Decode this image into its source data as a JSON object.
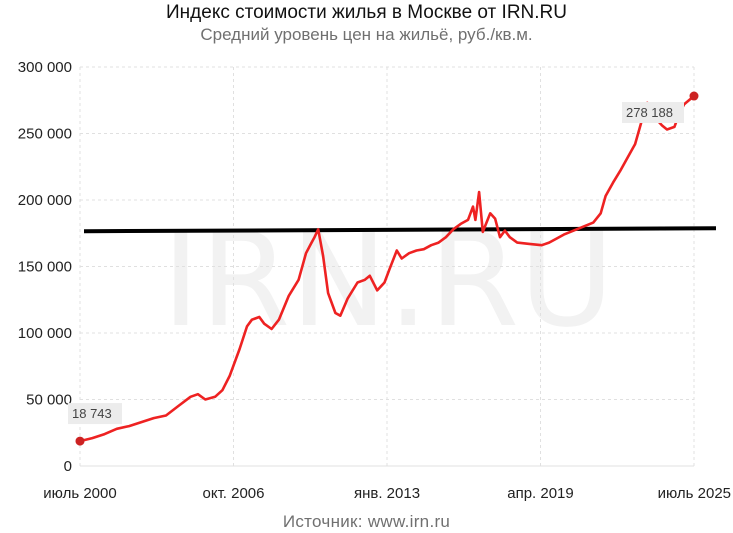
{
  "chart_data": {
    "type": "line",
    "title": "Индекс стоимости жилья в Москве от IRN.RU",
    "subtitle": "Средний уровень цен на жильё, руб./кв.м.",
    "source": "Источник:  www.irn.ru",
    "watermark": "IRN.RU",
    "x_ticks": [
      "июль 2000",
      "окт. 2006",
      "янв. 2013",
      "апр. 2019",
      "июль 2025"
    ],
    "y_ticks": [
      "0",
      "50 000",
      "100 000",
      "150 000",
      "200 000",
      "250 000",
      "300 000"
    ],
    "ylim": [
      0,
      300000
    ],
    "xlim": [
      2000.5,
      2025.5
    ],
    "grid": true,
    "colors": {
      "series": "#ee2222",
      "reference_line": "#000000",
      "grid": "#e0e0e0"
    },
    "series": [
      {
        "points": [
          [
            2000.5,
            18743
          ],
          [
            2001.0,
            21000
          ],
          [
            2001.5,
            24000
          ],
          [
            2002.0,
            28000
          ],
          [
            2002.5,
            30000
          ],
          [
            2003.0,
            33000
          ],
          [
            2003.5,
            36000
          ],
          [
            2004.0,
            38000
          ],
          [
            2004.5,
            45000
          ],
          [
            2005.0,
            52000
          ],
          [
            2005.3,
            54000
          ],
          [
            2005.6,
            50000
          ],
          [
            2006.0,
            52000
          ],
          [
            2006.3,
            57000
          ],
          [
            2006.6,
            68000
          ],
          [
            2007.0,
            88000
          ],
          [
            2007.3,
            105000
          ],
          [
            2007.5,
            110000
          ],
          [
            2007.8,
            112000
          ],
          [
            2008.0,
            107000
          ],
          [
            2008.3,
            103000
          ],
          [
            2008.6,
            110000
          ],
          [
            2009.0,
            128000
          ],
          [
            2009.4,
            140000
          ],
          [
            2009.7,
            160000
          ],
          [
            2009.9,
            167000
          ],
          [
            2010.05,
            172000
          ],
          [
            2010.2,
            178000
          ],
          [
            2010.4,
            158000
          ],
          [
            2010.6,
            130000
          ],
          [
            2010.9,
            115000
          ],
          [
            2011.1,
            113000
          ],
          [
            2011.4,
            126000
          ],
          [
            2011.8,
            138000
          ],
          [
            2012.1,
            140000
          ],
          [
            2012.3,
            143000
          ],
          [
            2012.6,
            132000
          ],
          [
            2012.9,
            138000
          ],
          [
            2013.1,
            148000
          ],
          [
            2013.4,
            162000
          ],
          [
            2013.6,
            156000
          ],
          [
            2013.9,
            160000
          ],
          [
            2014.2,
            162000
          ],
          [
            2014.5,
            163000
          ],
          [
            2014.8,
            166000
          ],
          [
            2015.1,
            168000
          ],
          [
            2015.4,
            172000
          ],
          [
            2015.7,
            178000
          ],
          [
            2016.0,
            182000
          ],
          [
            2016.3,
            185000
          ],
          [
            2016.5,
            195000
          ],
          [
            2016.6,
            185000
          ],
          [
            2016.75,
            206000
          ],
          [
            2016.9,
            176000
          ],
          [
            2017.2,
            190000
          ],
          [
            2017.4,
            186000
          ],
          [
            2017.6,
            172000
          ],
          [
            2017.8,
            177000
          ],
          [
            2018.0,
            172000
          ],
          [
            2018.3,
            168000
          ],
          [
            2018.8,
            167000
          ],
          [
            2019.3,
            166000
          ],
          [
            2019.6,
            168000
          ],
          [
            2019.9,
            171000
          ],
          [
            2020.2,
            174000
          ],
          [
            2020.6,
            177000
          ],
          [
            2021.0,
            180000
          ],
          [
            2021.4,
            183000
          ],
          [
            2021.7,
            190000
          ],
          [
            2021.9,
            203000
          ],
          [
            2022.2,
            213000
          ],
          [
            2022.5,
            222000
          ],
          [
            2022.8,
            232000
          ],
          [
            2023.1,
            242000
          ],
          [
            2023.3,
            255000
          ],
          [
            2023.5,
            268000
          ],
          [
            2023.6,
            273000
          ],
          [
            2023.9,
            262000
          ],
          [
            2024.2,
            256000
          ],
          [
            2024.4,
            253000
          ],
          [
            2024.7,
            255000
          ],
          [
            2024.9,
            265000
          ],
          [
            2025.1,
            272000
          ],
          [
            2025.5,
            278188
          ]
        ]
      }
    ],
    "reference_line": {
      "y": 178000
    },
    "annotations": [
      {
        "text": "18 743",
        "x": 2000.5,
        "y": 18743
      },
      {
        "text": "278 188",
        "x": 2025.5,
        "y": 278188
      }
    ]
  }
}
